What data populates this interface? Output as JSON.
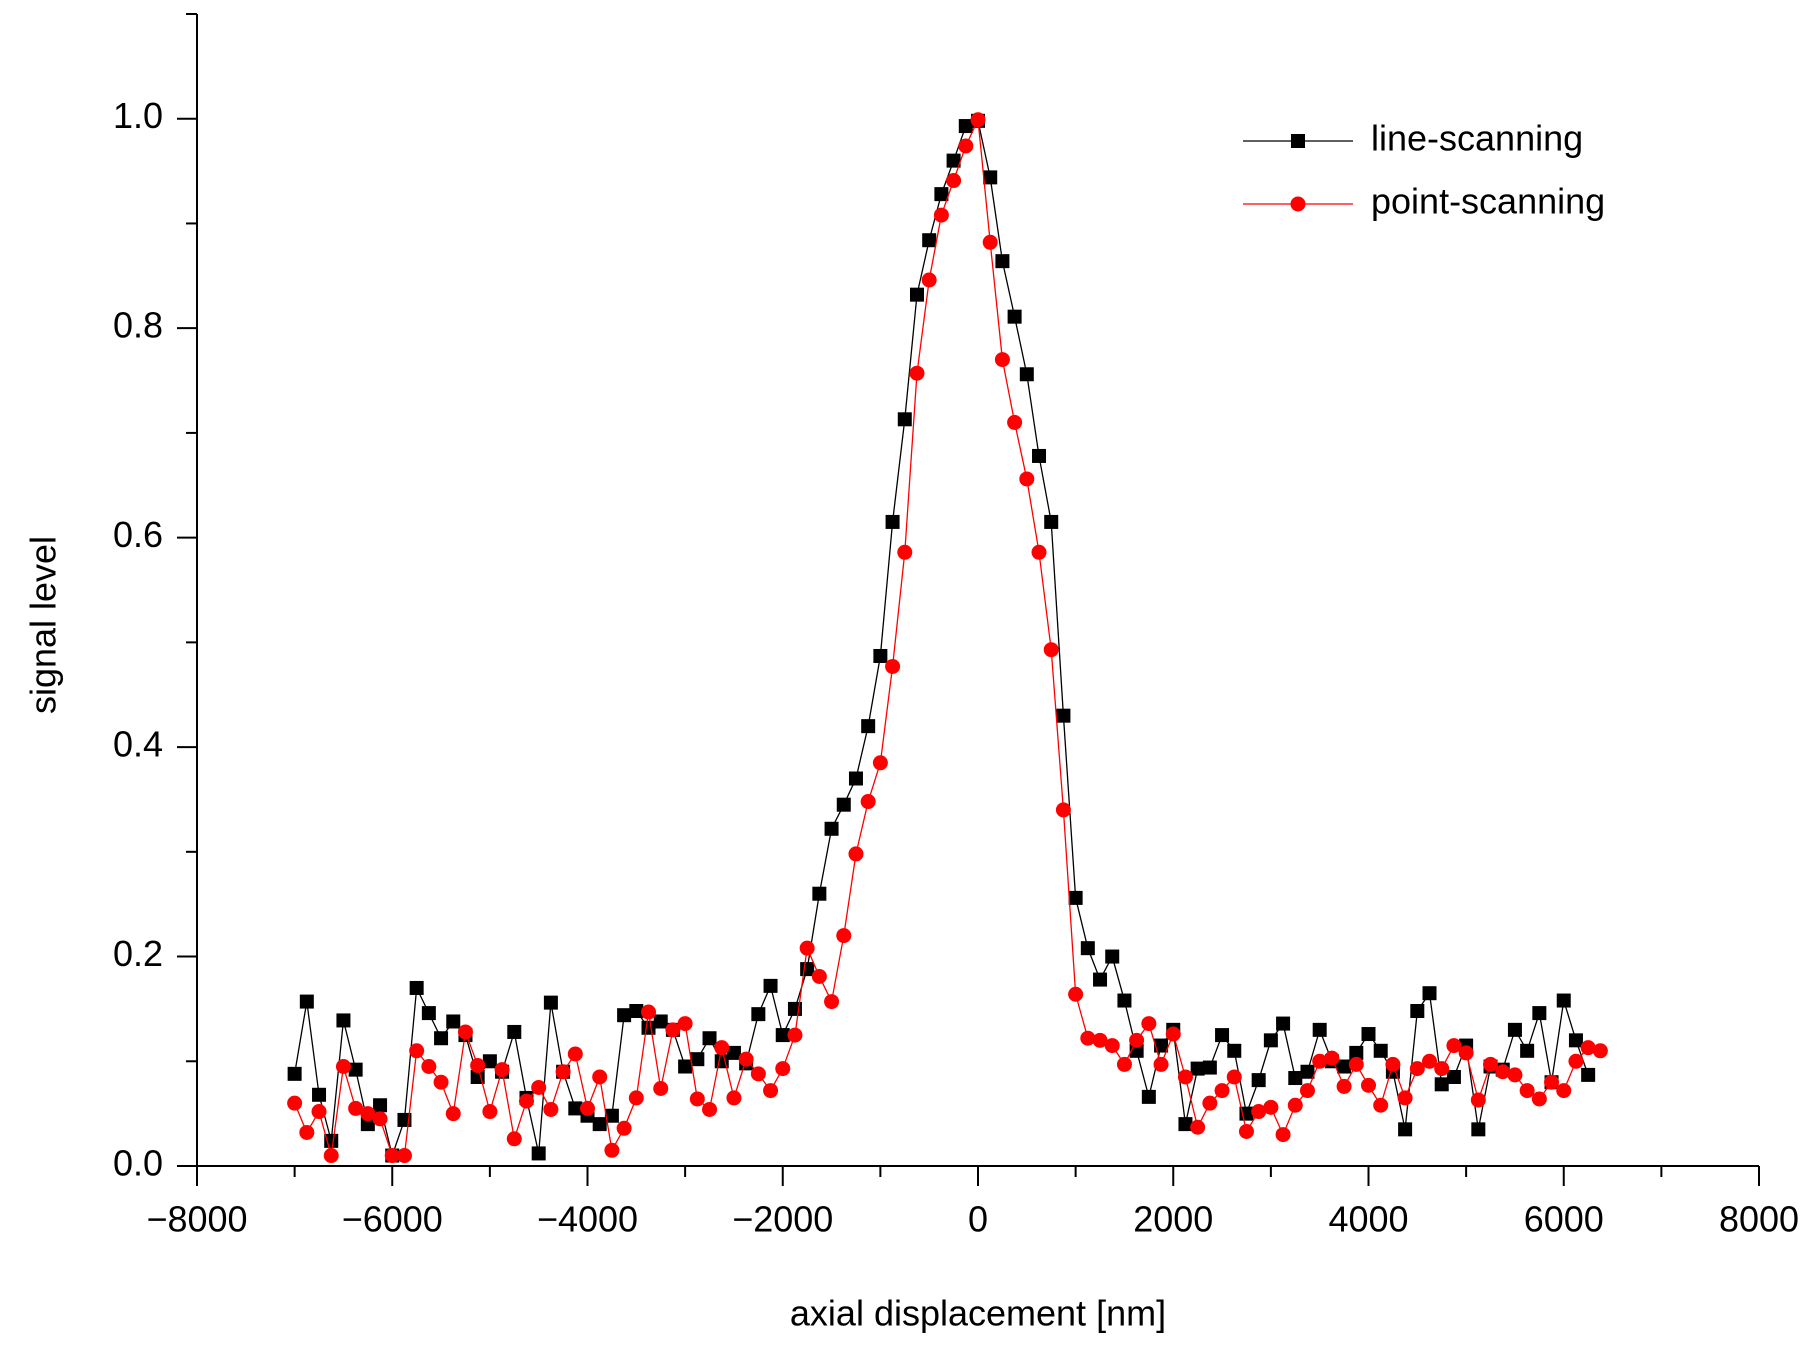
{
  "chart_data": {
    "type": "line",
    "x_label": "axial displacement [nm]",
    "y_label": "signal level",
    "xlim": [
      -8000,
      8000
    ],
    "xticks": [
      {
        "value": -8000,
        "label": "−8000"
      },
      {
        "value": -6000,
        "label": "−6000"
      },
      {
        "value": -4000,
        "label": "−4000"
      },
      {
        "value": -2000,
        "label": "−2000"
      },
      0,
      2000,
      4000,
      6000,
      8000
    ],
    "ylim": [
      0,
      1.1
    ],
    "yticks": [
      {
        "value": 0,
        "label": "0.0"
      },
      0.2,
      0.4,
      0.6,
      0.8,
      {
        "value": 1,
        "label": "1.0"
      }
    ],
    "legend": "upper right",
    "x": [
      -7000,
      -6875,
      -6750,
      -6625,
      -6500,
      -6375,
      -6250,
      -6125,
      -6000,
      -5875,
      -5750,
      -5625,
      -5500,
      -5375,
      -5250,
      -5125,
      -5000,
      -4875,
      -4750,
      -4625,
      -4500,
      -4375,
      -4250,
      -4125,
      -4000,
      -3875,
      -3750,
      -3625,
      -3500,
      -3375,
      -3250,
      -3125,
      -3000,
      -2875,
      -2750,
      -2625,
      -2500,
      -2375,
      -2250,
      -2125,
      -2000,
      -1875,
      -1750,
      -1625,
      -1500,
      -1375,
      -1250,
      -1125,
      -1000,
      -875,
      -750,
      -625,
      -500,
      -375,
      -250,
      -125,
      0,
      125,
      250,
      375,
      500,
      625,
      750,
      875,
      1000,
      1125,
      1250,
      1375,
      1500,
      1625,
      1750,
      1875,
      2000,
      2125,
      2250,
      2375,
      2500,
      2625,
      2750,
      2875,
      3000,
      3125,
      3250,
      3375,
      3500,
      3625,
      3750,
      3875,
      4000,
      4125,
      4250,
      4375,
      4500,
      4625,
      4750,
      4875,
      5000,
      5125,
      5250,
      5375,
      5500,
      5625,
      5750,
      5875,
      6000,
      6125,
      6250,
      6375
    ],
    "series": [
      {
        "name": "line-scanning",
        "color": "#000000",
        "marker": "square",
        "values": [
          0.088,
          0.157,
          0.068,
          0.024,
          0.139,
          0.092,
          0.04,
          0.058,
          0.01,
          0.044,
          0.17,
          0.146,
          0.122,
          0.138,
          0.125,
          0.085,
          0.1,
          0.09,
          0.128,
          0.065,
          0.012,
          0.156,
          0.09,
          0.055,
          0.048,
          0.04,
          0.048,
          0.144,
          0.148,
          0.132,
          0.138,
          0.13,
          0.095,
          0.102,
          0.122,
          0.1,
          0.108,
          0.098,
          0.145,
          0.172,
          0.125,
          0.15,
          0.188,
          0.26,
          0.322,
          0.345,
          0.37,
          0.42,
          0.487,
          0.615,
          0.713,
          0.832,
          0.884,
          0.928,
          0.96,
          0.993,
          0.998,
          0.944,
          0.864,
          0.811,
          0.756,
          0.678,
          0.615,
          0.43,
          0.256,
          0.208,
          0.178,
          0.2,
          0.158,
          0.11,
          0.066,
          0.115,
          0.13,
          0.04,
          0.093,
          0.094,
          0.125,
          0.11,
          0.05,
          0.082,
          0.12,
          0.136,
          0.084,
          0.09,
          0.13,
          0.1,
          0.095,
          0.108,
          0.126,
          0.11,
          0.09,
          0.035,
          0.148,
          0.165,
          0.078,
          0.085,
          0.115,
          0.035,
          0.095,
          0.092,
          0.13,
          0.11,
          0.146,
          0.08,
          0.158,
          0.12,
          0.087,
          null
        ]
      },
      {
        "name": "point-scanning",
        "color": "#ff0000",
        "marker": "circle",
        "values": [
          0.06,
          0.032,
          0.052,
          0.01,
          0.095,
          0.055,
          0.05,
          0.045,
          0.01,
          0.01,
          0.11,
          0.095,
          0.08,
          0.05,
          0.128,
          0.096,
          0.052,
          0.092,
          0.026,
          0.062,
          0.075,
          0.054,
          0.09,
          0.107,
          0.055,
          0.085,
          0.015,
          0.036,
          0.065,
          0.147,
          0.074,
          0.13,
          0.136,
          0.064,
          0.054,
          0.113,
          0.065,
          0.102,
          0.088,
          0.072,
          0.093,
          0.125,
          0.208,
          0.181,
          0.157,
          0.22,
          0.298,
          0.348,
          0.385,
          0.477,
          0.586,
          0.757,
          0.846,
          0.908,
          0.941,
          0.974,
          0.999,
          0.882,
          0.77,
          0.71,
          0.656,
          0.586,
          0.493,
          0.34,
          0.164,
          0.122,
          0.12,
          0.115,
          0.097,
          0.12,
          0.136,
          0.097,
          0.126,
          0.085,
          0.037,
          0.06,
          0.072,
          0.085,
          0.033,
          0.052,
          0.056,
          0.03,
          0.058,
          0.072,
          0.1,
          0.103,
          0.076,
          0.097,
          0.077,
          0.058,
          0.097,
          0.065,
          0.093,
          0.1,
          0.093,
          0.115,
          0.108,
          0.063,
          0.097,
          0.09,
          0.087,
          0.072,
          0.064,
          0.08,
          0.072,
          0.1,
          0.113,
          0.11
        ]
      }
    ]
  }
}
